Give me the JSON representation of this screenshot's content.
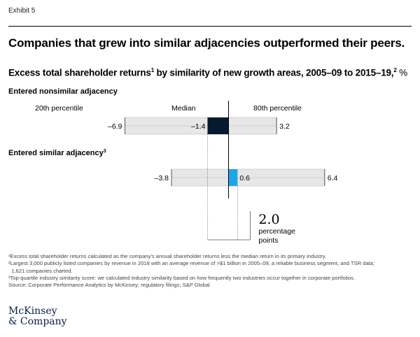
{
  "exhibit_label": "Exhibit 5",
  "title": "Companies that grew into similar adjacencies outperformed their peers.",
  "subtitle": {
    "text": "Excess total shareholder returns",
    "sup1": "1",
    "text2": " by similarity of new growth areas, 2005–09 to 2015–19,",
    "sup2": "2",
    "unit": " %"
  },
  "colors": {
    "track": "#e7e7e7",
    "track_border": "#bdbdbd",
    "nonsimilar_bar": "#061a2f",
    "similar_bar": "#1fa6ea",
    "axis": "#000000"
  },
  "chart_data": {
    "type": "bar",
    "range_header": [
      "20th percentile",
      "Median",
      "80th percentile"
    ],
    "series": [
      {
        "name": "Entered nonsimilar adjacency",
        "p20": -6.9,
        "median": -1.4,
        "p80": 3.2,
        "labels": {
          "p20": "–6.9",
          "median": "–1.4",
          "p80": "3.2"
        }
      },
      {
        "name": "Entered similar adjacency",
        "name_sup": "3",
        "p20": -3.8,
        "median": 0.6,
        "p80": 6.4,
        "labels": {
          "p20": "–3.8",
          "median": "0.6",
          "p80": "6.4"
        }
      }
    ],
    "difference": {
      "value": "2.0",
      "label_line1": "percentage",
      "label_line2": "points"
    }
  },
  "footnotes": [
    "¹Excess total shareholder returns calculated as the company's annual shareholder returns less the median return in its primary industry.",
    "²Largest 3,000 publicly listed companies by revenue in 2018 with an average revenue of >$1 billion in 2005–09, a reliable business segment, and TSR data;",
    "  1,621 companies charted.",
    "³Top-quartile industry similarity score: we calculated industry similarity based on how frequently two industries occur together in corporate portfolios.",
    "Source: Corporate Performance Analytics by McKinsey; regulatory filings; S&P Global"
  ],
  "logo": {
    "line1": "McKinsey",
    "line2": "& Company"
  }
}
